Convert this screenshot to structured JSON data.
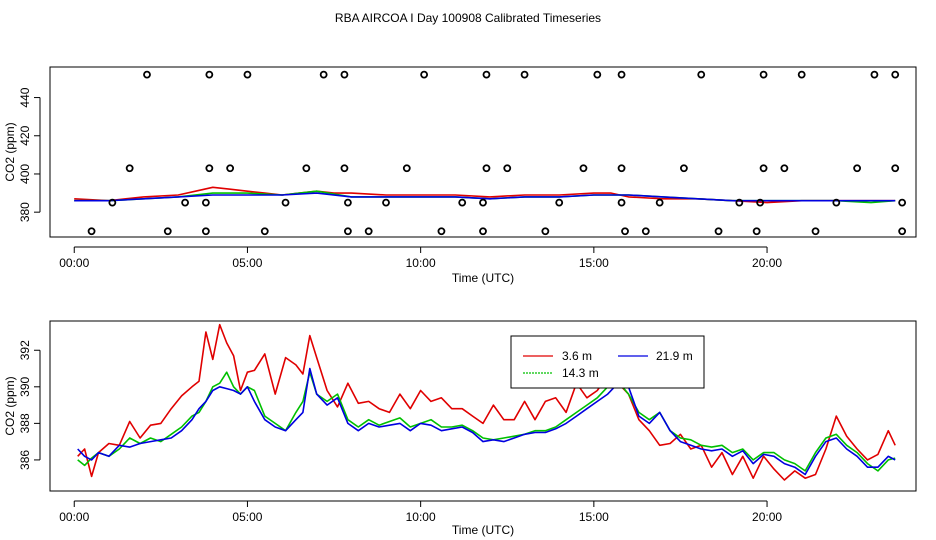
{
  "figure": {
    "title": "RBA AIRCOA I  Day 100908  Calibrated Timeseries"
  },
  "colors": {
    "series_3_6m": "#e00000",
    "series_14_3m": "#00c000",
    "series_21_9m": "#0000e0",
    "axis": "#000000",
    "points": "#000000"
  },
  "chart_data": [
    {
      "type": "line",
      "id": "top",
      "title": "",
      "xlabel": "Time (UTC)",
      "ylabel": "CO2 (ppm)",
      "xlim": [
        -0.7,
        24.3
      ],
      "ylim": [
        367,
        456
      ],
      "x_ticks": [
        0,
        5,
        10,
        15,
        20
      ],
      "x_tick_labels": [
        "00:00",
        "05:00",
        "10:00",
        "15:00",
        "20:00"
      ],
      "y_ticks": [
        380,
        400,
        420,
        440
      ],
      "y_tick_labels": [
        "380",
        "400",
        "420",
        "440"
      ],
      "series": [
        {
          "name": "3.6 m",
          "color": "#e00000",
          "x": [
            0,
            1,
            2,
            3,
            3.5,
            4,
            4.5,
            5,
            5.5,
            6,
            6.5,
            7,
            7.5,
            8,
            9,
            10,
            11,
            12,
            13,
            14,
            15,
            15.5,
            16,
            17,
            18,
            19,
            20,
            21,
            22,
            23,
            23.7
          ],
          "values": [
            387,
            386,
            388,
            389,
            391,
            393,
            392,
            391,
            390,
            389,
            390,
            391,
            390,
            390,
            389,
            389,
            389,
            388,
            389,
            389,
            390,
            390,
            388,
            387,
            387,
            386,
            385,
            386,
            386,
            386,
            386
          ]
        },
        {
          "name": "14.3 m",
          "color": "#00c000",
          "x": [
            0,
            1,
            2,
            3,
            4,
            5,
            6,
            7,
            8,
            9,
            10,
            11,
            12,
            13,
            14,
            15,
            16,
            17,
            18,
            19,
            20,
            21,
            22,
            23,
            23.7
          ],
          "values": [
            386,
            386,
            387,
            388,
            390,
            390,
            389,
            391,
            388,
            388,
            388,
            388,
            387,
            388,
            388,
            389,
            389,
            388,
            387,
            386,
            386,
            386,
            386,
            385,
            386
          ]
        },
        {
          "name": "21.9 m",
          "color": "#0000e0",
          "x": [
            0,
            1,
            2,
            3,
            4,
            5,
            6,
            7,
            8,
            9,
            10,
            11,
            12,
            13,
            14,
            15,
            16,
            17,
            18,
            19,
            20,
            21,
            22,
            23,
            23.7
          ],
          "values": [
            386,
            386,
            387,
            388,
            389,
            389,
            389,
            390,
            388,
            388,
            388,
            388,
            387,
            388,
            388,
            389,
            389,
            388,
            387,
            386,
            386,
            386,
            386,
            386,
            386
          ]
        }
      ],
      "points": {
        "x": [
          2.1,
          3.9,
          5.0,
          7.2,
          7.8,
          10.1,
          11.9,
          13.0,
          15.1,
          15.8,
          18.1,
          19.9,
          21.0,
          23.1,
          23.7,
          1.6,
          3.9,
          4.5,
          6.7,
          7.8,
          9.6,
          11.9,
          12.5,
          14.7,
          15.8,
          17.6,
          19.9,
          20.5,
          22.6,
          23.7,
          1.1,
          3.2,
          3.8,
          6.1,
          7.9,
          9.0,
          11.2,
          11.8,
          14.0,
          15.8,
          16.9,
          19.2,
          19.8,
          22.0,
          23.9,
          0.5,
          2.7,
          3.8,
          5.5,
          7.9,
          8.5,
          10.6,
          11.8,
          13.6,
          15.9,
          16.5,
          18.6,
          19.7,
          21.4,
          23.9
        ],
        "values": [
          452,
          452,
          452,
          452,
          452,
          452,
          452,
          452,
          452,
          452,
          452,
          452,
          452,
          452,
          452,
          403,
          403,
          403,
          403,
          403,
          403,
          403,
          403,
          403,
          403,
          403,
          403,
          403,
          403,
          403,
          385,
          385,
          385,
          385,
          385,
          385,
          385,
          385,
          385,
          385,
          385,
          385,
          385,
          385,
          385,
          370,
          370,
          370,
          370,
          370,
          370,
          370,
          370,
          370,
          370,
          370,
          370,
          370,
          370,
          370
        ]
      }
    },
    {
      "type": "line",
      "id": "bottom",
      "title": "",
      "xlabel": "Time (UTC)",
      "ylabel": "CO2 (ppm)",
      "xlim": [
        -0.7,
        24.3
      ],
      "ylim": [
        384.3,
        393.6
      ],
      "x_ticks": [
        0,
        5,
        10,
        15,
        20
      ],
      "x_tick_labels": [
        "00:00",
        "05:00",
        "10:00",
        "15:00",
        "20:00"
      ],
      "y_ticks": [
        386,
        388,
        390,
        392
      ],
      "y_tick_labels": [
        "386",
        "388",
        "390",
        "392"
      ],
      "legend": {
        "position": "top-right-inner",
        "entries": [
          "3.6 m",
          "14.3 m",
          "21.9 m"
        ]
      },
      "series": [
        {
          "name": "3.6 m",
          "color": "#e00000",
          "x": [
            0.1,
            0.3,
            0.5,
            0.7,
            1.0,
            1.3,
            1.6,
            1.9,
            2.2,
            2.5,
            2.8,
            3.1,
            3.4,
            3.6,
            3.8,
            4.0,
            4.2,
            4.4,
            4.6,
            4.8,
            5.0,
            5.2,
            5.5,
            5.8,
            6.1,
            6.4,
            6.6,
            6.8,
            7.0,
            7.3,
            7.6,
            7.9,
            8.2,
            8.5,
            8.8,
            9.1,
            9.4,
            9.7,
            10.0,
            10.3,
            10.6,
            10.9,
            11.2,
            11.5,
            11.8,
            12.1,
            12.4,
            12.7,
            13.0,
            13.3,
            13.6,
            13.9,
            14.2,
            14.5,
            14.8,
            15.1,
            15.4,
            15.7,
            16.0,
            16.3,
            16.6,
            16.9,
            17.2,
            17.5,
            17.8,
            18.1,
            18.4,
            18.7,
            19.0,
            19.3,
            19.6,
            19.9,
            20.2,
            20.5,
            20.8,
            21.1,
            21.4,
            21.7,
            22.0,
            22.3,
            22.6,
            22.9,
            23.2,
            23.5,
            23.7
          ],
          "values": [
            386.2,
            386.6,
            385.1,
            386.4,
            386.9,
            386.8,
            388.1,
            387.2,
            387.9,
            388.0,
            388.8,
            389.5,
            390.0,
            390.3,
            393.0,
            391.5,
            393.4,
            392.4,
            391.7,
            389.8,
            390.8,
            390.9,
            391.8,
            389.6,
            391.6,
            391.2,
            390.7,
            392.8,
            391.6,
            389.8,
            388.9,
            390.2,
            389.1,
            389.2,
            388.8,
            388.6,
            389.6,
            388.8,
            389.8,
            389.2,
            389.4,
            388.8,
            388.8,
            388.4,
            388.0,
            389.0,
            388.2,
            388.2,
            389.2,
            388.2,
            389.2,
            389.4,
            388.6,
            390.2,
            389.4,
            389.8,
            390.6,
            390.2,
            389.6,
            388.2,
            387.6,
            386.8,
            386.9,
            387.4,
            386.6,
            386.8,
            385.6,
            386.4,
            385.2,
            386.2,
            385.0,
            386.2,
            385.5,
            384.9,
            385.4,
            385.0,
            385.2,
            386.6,
            388.4,
            387.3,
            386.6,
            386.0,
            386.3,
            387.6,
            386.8
          ]
        },
        {
          "name": "14.3 m",
          "color": "#00c000",
          "x": [
            0.1,
            0.3,
            0.5,
            0.7,
            1.0,
            1.3,
            1.6,
            1.9,
            2.2,
            2.5,
            2.8,
            3.1,
            3.4,
            3.6,
            3.8,
            4.0,
            4.2,
            4.4,
            4.6,
            4.8,
            5.0,
            5.2,
            5.5,
            5.8,
            6.1,
            6.4,
            6.6,
            6.8,
            7.0,
            7.3,
            7.6,
            7.9,
            8.2,
            8.5,
            8.8,
            9.1,
            9.4,
            9.7,
            10.0,
            10.3,
            10.6,
            10.9,
            11.2,
            11.5,
            11.8,
            12.1,
            12.4,
            12.7,
            13.0,
            13.3,
            13.6,
            13.9,
            14.2,
            14.5,
            14.8,
            15.1,
            15.4,
            15.7,
            16.0,
            16.3,
            16.6,
            16.9,
            17.2,
            17.5,
            17.8,
            18.1,
            18.4,
            18.7,
            19.0,
            19.3,
            19.6,
            19.9,
            20.2,
            20.5,
            20.8,
            21.1,
            21.4,
            21.7,
            22.0,
            22.3,
            22.6,
            22.9,
            23.2,
            23.5,
            23.7
          ],
          "values": [
            386.0,
            385.7,
            386.1,
            386.4,
            386.2,
            386.6,
            387.2,
            386.9,
            387.2,
            387.0,
            387.4,
            387.8,
            388.4,
            388.6,
            389.2,
            390.0,
            390.2,
            390.8,
            390.0,
            389.6,
            390.0,
            389.8,
            388.4,
            388.0,
            387.6,
            388.6,
            389.2,
            390.8,
            389.6,
            389.2,
            389.6,
            388.2,
            387.8,
            388.2,
            387.9,
            388.1,
            388.3,
            387.8,
            388.0,
            388.2,
            387.8,
            387.8,
            387.9,
            387.6,
            387.2,
            387.1,
            387.2,
            387.3,
            387.4,
            387.6,
            387.6,
            387.8,
            388.2,
            388.6,
            389.0,
            389.4,
            390.0,
            390.3,
            389.6,
            388.6,
            388.2,
            388.6,
            387.6,
            387.2,
            387.1,
            386.8,
            386.7,
            386.8,
            386.4,
            386.6,
            386.0,
            386.4,
            386.4,
            386.0,
            385.8,
            385.4,
            386.4,
            387.2,
            387.4,
            386.8,
            386.4,
            385.8,
            385.4,
            386.0,
            386.1
          ]
        },
        {
          "name": "21.9 m",
          "color": "#0000e0",
          "x": [
            0.1,
            0.3,
            0.5,
            0.7,
            1.0,
            1.3,
            1.6,
            1.9,
            2.2,
            2.5,
            2.8,
            3.1,
            3.4,
            3.6,
            3.8,
            4.0,
            4.2,
            4.4,
            4.6,
            4.8,
            5.0,
            5.2,
            5.5,
            5.8,
            6.1,
            6.4,
            6.6,
            6.8,
            7.0,
            7.3,
            7.6,
            7.9,
            8.2,
            8.5,
            8.8,
            9.1,
            9.4,
            9.7,
            10.0,
            10.3,
            10.6,
            10.9,
            11.2,
            11.5,
            11.8,
            12.1,
            12.4,
            12.7,
            13.0,
            13.3,
            13.6,
            13.9,
            14.2,
            14.5,
            14.8,
            15.1,
            15.4,
            15.7,
            16.0,
            16.3,
            16.6,
            16.9,
            17.2,
            17.5,
            17.8,
            18.1,
            18.4,
            18.7,
            19.0,
            19.3,
            19.6,
            19.9,
            20.2,
            20.5,
            20.8,
            21.1,
            21.4,
            21.7,
            22.0,
            22.3,
            22.6,
            22.9,
            23.2,
            23.5,
            23.7
          ],
          "values": [
            386.6,
            386.2,
            386.0,
            386.4,
            386.2,
            386.8,
            386.7,
            386.9,
            387.0,
            387.1,
            387.2,
            387.6,
            388.2,
            388.8,
            389.2,
            389.8,
            390.0,
            389.9,
            389.8,
            389.6,
            390.0,
            389.2,
            388.2,
            387.8,
            387.6,
            388.2,
            388.6,
            391.0,
            389.6,
            389.0,
            389.4,
            388.0,
            387.6,
            388.0,
            387.8,
            387.9,
            388.0,
            387.6,
            388.0,
            387.9,
            387.6,
            387.7,
            387.8,
            387.5,
            387.0,
            387.1,
            387.0,
            387.2,
            387.4,
            387.5,
            387.5,
            387.7,
            388.0,
            388.4,
            388.8,
            389.2,
            389.6,
            390.2,
            390.0,
            388.4,
            388.0,
            388.6,
            387.6,
            387.0,
            386.8,
            386.6,
            386.5,
            386.6,
            386.2,
            386.5,
            385.8,
            386.3,
            386.2,
            385.8,
            385.6,
            385.2,
            386.2,
            387.0,
            387.2,
            386.6,
            386.2,
            385.6,
            385.6,
            386.2,
            386.0
          ]
        }
      ]
    }
  ]
}
